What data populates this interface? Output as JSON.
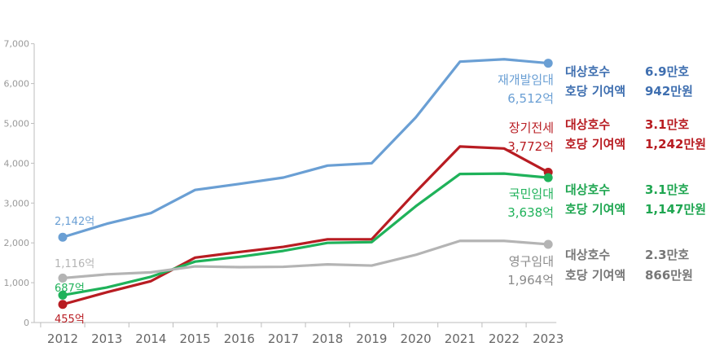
{
  "chart_data": {
    "type": "line",
    "x": [
      "2012",
      "2013",
      "2014",
      "2015",
      "2016",
      "2017",
      "2018",
      "2019",
      "2020",
      "2021",
      "2022",
      "2023"
    ],
    "ylim": [
      0,
      7000
    ],
    "y_ticks": [
      "0",
      "1,000",
      "2,000",
      "3,000",
      "4,000",
      "5,000",
      "6,000",
      "7,000"
    ],
    "grid": false,
    "series": [
      {
        "name": "재개발임대",
        "color": "#6a9fd4",
        "values": [
          2142,
          2480,
          2750,
          3330,
          3480,
          3640,
          3940,
          4000,
          5150,
          6550,
          6610,
          6512
        ],
        "start_label": "2,142억",
        "end_label": "6,512억",
        "info": [
          [
            "대상호수",
            "6.9만호"
          ],
          [
            "호당 기여액",
            "942만원"
          ]
        ],
        "info_color": "#3f6fb0"
      },
      {
        "name": "장기전세",
        "color": "#b81c22",
        "values": [
          455,
          760,
          1040,
          1630,
          1770,
          1900,
          2090,
          2090,
          3280,
          4420,
          4370,
          3772
        ],
        "start_label": "455억",
        "end_label": "3,772억",
        "info": [
          [
            "대상호수",
            "3.1만호"
          ],
          [
            "호당 기여액",
            "1,242만원"
          ]
        ],
        "info_color": "#b81c22"
      },
      {
        "name": "국민임대",
        "color": "#1fb25a",
        "values": [
          687,
          880,
          1150,
          1530,
          1650,
          1800,
          2000,
          2020,
          2920,
          3730,
          3740,
          3638
        ],
        "start_label": "687억",
        "end_label": "3,638억",
        "info": [
          [
            "대상호수",
            "3.1만호"
          ],
          [
            "호당 기여액",
            "1,147만원"
          ]
        ],
        "info_color": "#1fa651"
      },
      {
        "name": "영구임대",
        "color": "#b4b4b4",
        "values": [
          1116,
          1210,
          1260,
          1410,
          1390,
          1400,
          1460,
          1430,
          1700,
          2050,
          2050,
          1964
        ],
        "start_label": "1,116억",
        "end_label": "1,964억",
        "info": [
          [
            "대상호수",
            "2.3만호"
          ],
          [
            "호당 기여액",
            "866만원"
          ]
        ],
        "info_color": "#777777"
      }
    ]
  }
}
